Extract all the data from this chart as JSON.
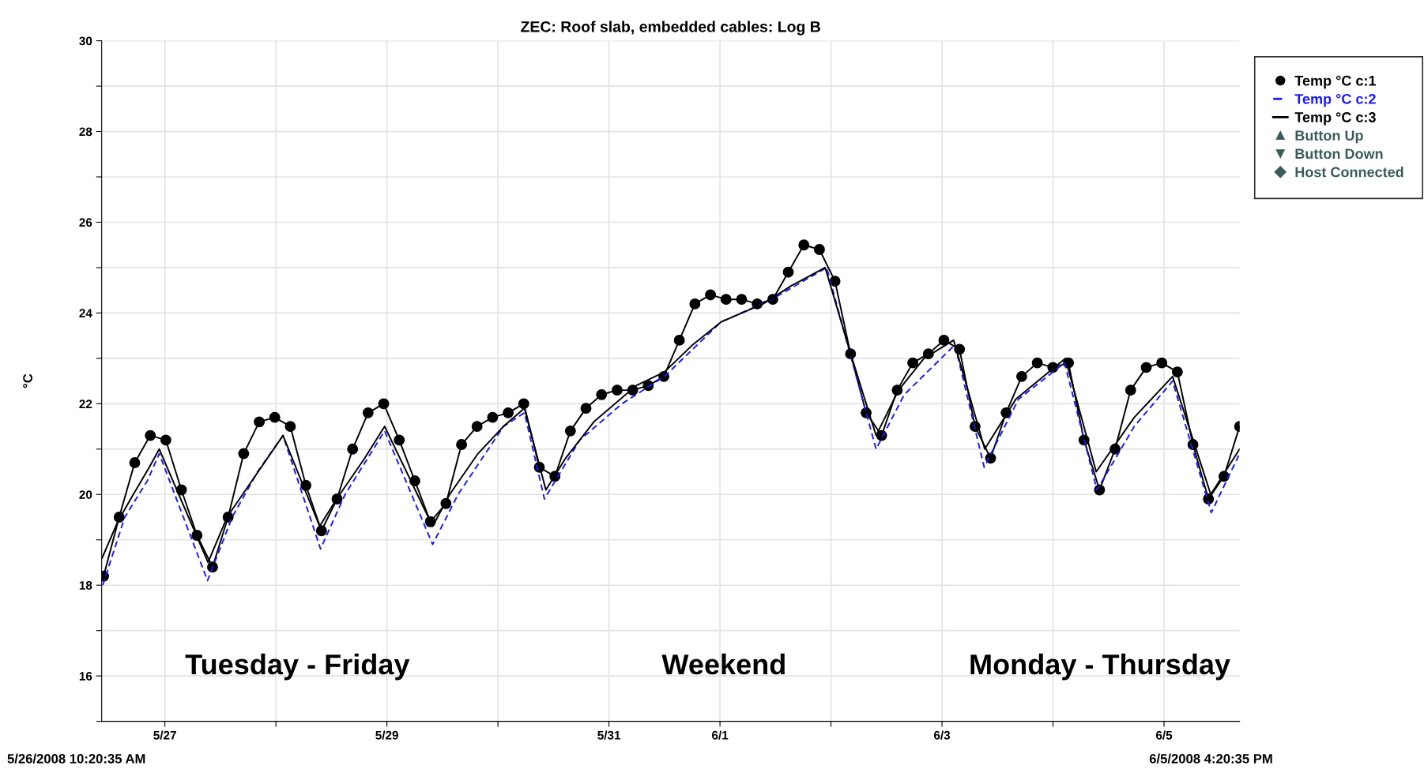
{
  "chart_data": {
    "type": "line",
    "title": "ZEC: Roof slab, embedded cables: Log B",
    "ylabel": "°C",
    "xlim": [
      "2008-05-26T10:20",
      "2008-06-05T16:20"
    ],
    "xticks": [
      {
        "value": "2008-05-27",
        "label": "5/27"
      },
      {
        "value": "2008-05-28",
        "label": null
      },
      {
        "value": "2008-05-29",
        "label": "5/29"
      },
      {
        "value": "2008-05-30",
        "label": null
      },
      {
        "value": "2008-05-31",
        "label": "5/31"
      },
      {
        "value": "2008-06-01",
        "label": "6/1"
      },
      {
        "value": "2008-06-02",
        "label": null
      },
      {
        "value": "2008-06-03",
        "label": "6/3"
      },
      {
        "value": "2008-06-04",
        "label": null
      },
      {
        "value": "2008-06-05",
        "label": "6/5"
      }
    ],
    "ylim": [
      15,
      30
    ],
    "yticks": [
      {
        "value": 15,
        "label": null
      },
      16,
      {
        "value": 17,
        "label": null
      },
      18,
      {
        "value": 19,
        "label": null
      },
      20,
      {
        "value": 21,
        "label": null
      },
      22,
      {
        "value": 23,
        "label": null
      },
      24,
      {
        "value": 25,
        "label": null
      },
      26,
      {
        "value": 27,
        "label": null
      },
      28,
      {
        "value": 29,
        "label": null
      },
      30
    ],
    "grid": true,
    "legend": "top right",
    "series": [
      {
        "name": "Temp °C c:1",
        "color": "#000000",
        "marker": "circle",
        "line_style": "solid",
        "x": [
          "2008-05-26T10:45",
          "2008-05-26T14:07",
          "2008-05-26T17:29",
          "2008-05-26T20:51",
          "2008-05-27T00:12",
          "2008-05-27T03:34",
          "2008-05-27T06:56",
          "2008-05-27T10:18",
          "2008-05-27T13:40",
          "2008-05-27T17:02",
          "2008-05-27T20:24",
          "2008-05-27T23:45",
          "2008-05-28T03:07",
          "2008-05-28T06:29",
          "2008-05-28T09:51",
          "2008-05-28T13:13",
          "2008-05-28T16:35",
          "2008-05-28T19:56",
          "2008-05-28T23:18",
          "2008-05-29T02:40",
          "2008-05-29T06:02",
          "2008-05-29T09:24",
          "2008-05-29T12:46",
          "2008-05-29T16:08",
          "2008-05-29T19:29",
          "2008-05-29T22:51",
          "2008-05-30T02:13",
          "2008-05-30T05:35",
          "2008-05-30T08:57",
          "2008-05-30T12:19",
          "2008-05-30T15:40",
          "2008-05-30T19:02",
          "2008-05-30T22:24",
          "2008-05-31T01:46",
          "2008-05-31T05:08",
          "2008-05-31T08:30",
          "2008-05-31T11:52",
          "2008-05-31T15:13",
          "2008-05-31T18:35",
          "2008-05-31T21:57",
          "2008-06-01T01:19",
          "2008-06-01T04:41",
          "2008-06-01T08:03",
          "2008-06-01T11:25",
          "2008-06-01T14:46",
          "2008-06-01T18:08",
          "2008-06-01T21:30",
          "2008-06-02T00:52",
          "2008-06-02T04:14",
          "2008-06-02T07:36",
          "2008-06-02T10:57",
          "2008-06-02T14:19",
          "2008-06-02T17:41",
          "2008-06-02T21:03",
          "2008-06-03T00:25",
          "2008-06-03T03:47",
          "2008-06-03T07:09",
          "2008-06-03T10:30",
          "2008-06-03T13:52",
          "2008-06-03T17:14",
          "2008-06-03T20:36",
          "2008-06-03T23:58",
          "2008-06-04T03:20",
          "2008-06-04T06:42",
          "2008-06-04T10:03",
          "2008-06-04T13:25",
          "2008-06-04T16:47",
          "2008-06-04T20:09",
          "2008-06-04T23:31",
          "2008-06-05T02:53",
          "2008-06-05T06:15",
          "2008-06-05T09:36",
          "2008-06-05T12:58",
          "2008-06-05T16:20"
        ],
        "values": [
          18.2,
          19.5,
          20.7,
          21.3,
          21.2,
          20.1,
          19.1,
          18.4,
          19.5,
          20.9,
          21.6,
          21.7,
          21.5,
          20.2,
          19.2,
          19.9,
          21.0,
          21.8,
          22.0,
          21.2,
          20.3,
          19.4,
          19.8,
          21.1,
          21.5,
          21.7,
          21.8,
          22.0,
          20.6,
          20.4,
          21.4,
          21.9,
          22.2,
          22.3,
          22.3,
          22.4,
          22.6,
          23.4,
          24.2,
          24.4,
          24.3,
          24.3,
          24.2,
          24.3,
          24.9,
          25.5,
          25.4,
          24.7,
          23.1,
          21.8,
          21.3,
          22.3,
          22.9,
          23.1,
          23.4,
          23.2,
          21.5,
          20.8,
          21.8,
          22.6,
          22.9,
          22.8,
          22.9,
          21.2,
          20.1,
          21.0,
          22.3,
          22.8,
          22.9,
          22.7,
          21.1,
          19.9,
          20.4,
          21.5
        ]
      },
      {
        "name": "Temp °C c:2",
        "color": "#1a1aff",
        "marker": "none",
        "line_style": "dashed",
        "x": [
          "2008-05-26T10:34",
          "2008-05-26T15:20",
          "2008-05-26T20:12",
          "2008-05-26T22:47",
          "2008-05-27T09:13",
          "2008-05-27T14:33",
          "2008-05-27T20:02",
          "2008-05-28T01:32",
          "2008-05-28T09:39",
          "2008-05-28T14:57",
          "2008-05-28T23:31",
          "2008-05-29T09:53",
          "2008-05-29T15:23",
          "2008-05-30T01:12",
          "2008-05-30T05:44",
          "2008-05-30T10:03",
          "2008-05-30T17:41",
          "2008-05-31T02:50",
          "2008-05-31T12:00",
          "2008-06-01T00:12",
          "2008-06-01T11:11",
          "2008-06-01T23:04",
          "2008-06-02T09:45",
          "2008-06-02T15:50",
          "2008-06-03T02:48",
          "2008-06-03T09:07",
          "2008-06-03T16:32",
          "2008-06-04T02:30",
          "2008-06-04T09:30",
          "2008-06-04T17:34",
          "2008-06-05T01:51",
          "2008-06-05T10:13",
          "2008-06-05T16:20"
        ],
        "values": [
          18.0,
          19.5,
          20.3,
          20.9,
          18.1,
          19.5,
          20.5,
          21.3,
          18.8,
          20.0,
          21.4,
          18.9,
          20.0,
          21.5,
          21.8,
          19.9,
          21.2,
          22.0,
          22.6,
          23.8,
          24.3,
          25.0,
          21.0,
          22.2,
          23.3,
          20.6,
          22.1,
          22.9,
          20.1,
          21.5,
          22.5,
          19.6,
          20.9
        ]
      },
      {
        "name": "Temp °C c:3",
        "color": "#000000",
        "marker": "none",
        "line_style": "solid",
        "x": [
          "2008-05-26T10:26",
          "2008-05-26T13:48",
          "2008-05-26T17:10",
          "2008-05-26T20:38",
          "2008-05-26T22:47",
          "2008-05-27T09:20",
          "2008-05-27T13:26",
          "2008-05-27T18:49",
          "2008-05-28T01:32",
          "2008-05-28T09:27",
          "2008-05-28T13:08",
          "2008-05-28T19:12",
          "2008-05-28T23:31",
          "2008-05-29T09:53",
          "2008-05-29T13:34",
          "2008-05-29T19:41",
          "2008-05-30T01:12",
          "2008-05-30T05:44",
          "2008-05-30T10:22",
          "2008-05-30T14:38",
          "2008-05-30T20:44",
          "2008-05-31T05:53",
          "2008-05-31T12:00",
          "2008-05-31T18:06",
          "2008-06-01T00:12",
          "2008-06-01T09:20",
          "2008-06-01T15:26",
          "2008-06-01T22:45",
          "2008-06-02T04:15",
          "2008-06-02T09:45",
          "2008-06-02T14:37",
          "2008-06-02T20:07",
          "2008-06-03T02:31",
          "2008-06-03T09:14",
          "2008-06-03T15:58",
          "2008-06-04T02:40",
          "2008-06-04T09:20",
          "2008-06-04T17:34",
          "2008-06-05T01:51",
          "2008-06-05T10:06",
          "2008-06-05T16:20"
        ],
        "values": [
          18.6,
          19.4,
          20.0,
          20.6,
          21.0,
          18.5,
          19.5,
          20.3,
          21.3,
          19.3,
          19.9,
          20.8,
          21.5,
          19.3,
          20.0,
          20.9,
          21.5,
          21.9,
          20.1,
          20.8,
          21.6,
          22.4,
          22.7,
          23.3,
          23.8,
          24.2,
          24.6,
          25.0,
          23.1,
          21.3,
          22.3,
          23.0,
          23.4,
          21.0,
          22.1,
          23.0,
          20.5,
          21.7,
          22.6,
          20.0,
          21.0
        ]
      },
      {
        "name": "Button Up",
        "type": "scatter",
        "color": "#3b5b5b",
        "marker": "triangle"
      },
      {
        "name": "Button Down",
        "type": "scatter",
        "color": "#3b5b5b",
        "marker": "triangle_down"
      },
      {
        "name": "Host Connected",
        "type": "scatter",
        "color": "#3b5b5b",
        "marker": "diamond"
      }
    ],
    "annotations": [
      "Tuesday - Friday",
      "Weekend",
      "Monday - Thursday",
      "5/26/2008 10:20:35 AM",
      "6/5/2008 4:20:35 PM"
    ]
  }
}
